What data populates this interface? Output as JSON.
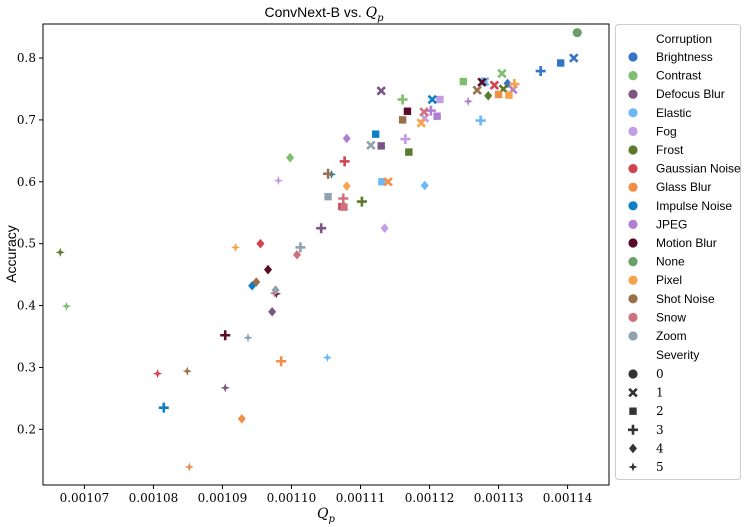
{
  "chart_data": {
    "type": "scatter",
    "title": "ConvNext-B vs. Q_p",
    "title_parts": {
      "text": "ConvNext-B vs. ",
      "math": "Q",
      "sub": "p"
    },
    "xlabel": "Q_p",
    "xlabel_parts": {
      "math": "Q",
      "sub": "p"
    },
    "ylabel": "Accuracy",
    "xlim": [
      0.001064,
      0.001146
    ],
    "ylim": [
      0.11,
      0.855
    ],
    "xticks": [
      {
        "value": 0.00107,
        "label": "0.00107"
      },
      {
        "value": 0.00108,
        "label": "0.00108"
      },
      {
        "value": 0.00109,
        "label": "0.00109"
      },
      {
        "value": 0.0011,
        "label": "0.00110"
      },
      {
        "value": 0.00111,
        "label": "0.00111"
      },
      {
        "value": 0.00112,
        "label": "0.00112"
      },
      {
        "value": 0.00113,
        "label": "0.00113"
      },
      {
        "value": 0.00114,
        "label": "0.00114"
      }
    ],
    "yticks": [
      {
        "value": 0.2,
        "label": "0.2"
      },
      {
        "value": 0.3,
        "label": "0.3"
      },
      {
        "value": 0.4,
        "label": "0.4"
      },
      {
        "value": 0.5,
        "label": "0.5"
      },
      {
        "value": 0.6,
        "label": "0.6"
      },
      {
        "value": 0.7,
        "label": "0.7"
      },
      {
        "value": 0.8,
        "label": "0.8"
      }
    ],
    "grid": false,
    "legend_position": "outside-right",
    "legend": {
      "hue_title": "Corruption",
      "corruptions": [
        {
          "name": "Brightness",
          "color": "#3575c7"
        },
        {
          "name": "Contrast",
          "color": "#7dbf6d"
        },
        {
          "name": "Defocus Blur",
          "color": "#7b5584"
        },
        {
          "name": "Elastic",
          "color": "#6cb8f5"
        },
        {
          "name": "Fog",
          "color": "#c39ce6"
        },
        {
          "name": "Frost",
          "color": "#5c7a2e"
        },
        {
          "name": "Gaussian Noise",
          "color": "#d2434f"
        },
        {
          "name": "Glass Blur",
          "color": "#f08f45"
        },
        {
          "name": "Impulse Noise",
          "color": "#0e7fc6"
        },
        {
          "name": "JPEG",
          "color": "#b07fd4"
        },
        {
          "name": "Motion Blur",
          "color": "#5c0a2a"
        },
        {
          "name": "None",
          "color": "#6a9e6a"
        },
        {
          "name": "Pixel",
          "color": "#f8a347"
        },
        {
          "name": "Shot Noise",
          "color": "#9a6f4b"
        },
        {
          "name": "Snow",
          "color": "#cf727f"
        },
        {
          "name": "Zoom",
          "color": "#8fa2ad"
        }
      ],
      "size_title": "Severity",
      "severities": [
        {
          "level": "0",
          "marker": "circle"
        },
        {
          "level": "1",
          "marker": "x"
        },
        {
          "level": "2",
          "marker": "square"
        },
        {
          "level": "3",
          "marker": "plus"
        },
        {
          "level": "4",
          "marker": "diamond"
        },
        {
          "level": "5",
          "marker": "star"
        }
      ]
    },
    "points": [
      {
        "c": "None",
        "s": 0,
        "x": 0.0011414,
        "y": 0.841
      },
      {
        "c": "Brightness",
        "s": 1,
        "x": 0.0011409,
        "y": 0.8
      },
      {
        "c": "Brightness",
        "s": 2,
        "x": 0.001139,
        "y": 0.792
      },
      {
        "c": "Brightness",
        "s": 3,
        "x": 0.0011361,
        "y": 0.779
      },
      {
        "c": "Brightness",
        "s": 4,
        "x": 0.0011313,
        "y": 0.759
      },
      {
        "c": "Brightness",
        "s": 5,
        "x": 0.0011278,
        "y": 0.762
      },
      {
        "c": "Contrast",
        "s": 1,
        "x": 0.0011305,
        "y": 0.775
      },
      {
        "c": "Contrast",
        "s": 2,
        "x": 0.0011249,
        "y": 0.762
      },
      {
        "c": "Contrast",
        "s": 3,
        "x": 0.0011161,
        "y": 0.733
      },
      {
        "c": "Contrast",
        "s": 4,
        "x": 0.0010998,
        "y": 0.639
      },
      {
        "c": "Contrast",
        "s": 5,
        "x": 0.0010674,
        "y": 0.399
      },
      {
        "c": "Defocus Blur",
        "s": 1,
        "x": 0.001113,
        "y": 0.747
      },
      {
        "c": "Defocus Blur",
        "s": 2,
        "x": 0.001113,
        "y": 0.658
      },
      {
        "c": "Defocus Blur",
        "s": 3,
        "x": 0.0011043,
        "y": 0.525
      },
      {
        "c": "Defocus Blur",
        "s": 4,
        "x": 0.0010972,
        "y": 0.39
      },
      {
        "c": "Defocus Blur",
        "s": 5,
        "x": 0.0010904,
        "y": 0.267
      },
      {
        "c": "Elastic",
        "s": 1,
        "x": 0.001128,
        "y": 0.762
      },
      {
        "c": "Elastic",
        "s": 2,
        "x": 0.0011131,
        "y": 0.6
      },
      {
        "c": "Elastic",
        "s": 3,
        "x": 0.0011274,
        "y": 0.699
      },
      {
        "c": "Elastic",
        "s": 4,
        "x": 0.0011193,
        "y": 0.594
      },
      {
        "c": "Elastic",
        "s": 5,
        "x": 0.0011052,
        "y": 0.316
      },
      {
        "c": "Fog",
        "s": 1,
        "x": 0.0011193,
        "y": 0.703
      },
      {
        "c": "Fog",
        "s": 2,
        "x": 0.0011215,
        "y": 0.733
      },
      {
        "c": "Fog",
        "s": 3,
        "x": 0.0011165,
        "y": 0.669
      },
      {
        "c": "Fog",
        "s": 4,
        "x": 0.0011135,
        "y": 0.525
      },
      {
        "c": "Fog",
        "s": 5,
        "x": 0.0010981,
        "y": 0.602
      },
      {
        "c": "Frost",
        "s": 1,
        "x": 0.0011307,
        "y": 0.75
      },
      {
        "c": "Frost",
        "s": 2,
        "x": 0.001117,
        "y": 0.648
      },
      {
        "c": "Frost",
        "s": 3,
        "x": 0.0011102,
        "y": 0.568
      },
      {
        "c": "Frost",
        "s": 4,
        "x": 0.0011285,
        "y": 0.739
      },
      {
        "c": "Frost",
        "s": 5,
        "x": 0.0010665,
        "y": 0.486
      },
      {
        "c": "Gaussian Noise",
        "s": 1,
        "x": 0.0011294,
        "y": 0.756
      },
      {
        "c": "Gaussian Noise",
        "s": 2,
        "x": 0.0011073,
        "y": 0.56
      },
      {
        "c": "Gaussian Noise",
        "s": 3,
        "x": 0.0011077,
        "y": 0.633
      },
      {
        "c": "Gaussian Noise",
        "s": 4,
        "x": 0.0010955,
        "y": 0.5
      },
      {
        "c": "Gaussian Noise",
        "s": 5,
        "x": 0.0010806,
        "y": 0.29
      },
      {
        "c": "Glass Blur",
        "s": 1,
        "x": 0.001114,
        "y": 0.6
      },
      {
        "c": "Glass Blur",
        "s": 2,
        "x": 0.00113,
        "y": 0.741
      },
      {
        "c": "Glass Blur",
        "s": 3,
        "x": 0.0010985,
        "y": 0.31
      },
      {
        "c": "Glass Blur",
        "s": 4,
        "x": 0.0010928,
        "y": 0.217
      },
      {
        "c": "Glass Blur",
        "s": 5,
        "x": 0.0010852,
        "y": 0.139
      },
      {
        "c": "Impulse Noise",
        "s": 1,
        "x": 0.0011204,
        "y": 0.733
      },
      {
        "c": "Impulse Noise",
        "s": 2,
        "x": 0.0011122,
        "y": 0.677
      },
      {
        "c": "Impulse Noise",
        "s": 3,
        "x": 0.0010815,
        "y": 0.235
      },
      {
        "c": "Impulse Noise",
        "s": 4,
        "x": 0.0010943,
        "y": 0.432
      },
      {
        "c": "Impulse Noise",
        "s": 5,
        "x": 0.0011058,
        "y": 0.612
      },
      {
        "c": "JPEG",
        "s": 1,
        "x": 0.0011321,
        "y": 0.749
      },
      {
        "c": "JPEG",
        "s": 2,
        "x": 0.0011211,
        "y": 0.706
      },
      {
        "c": "JPEG",
        "s": 3,
        "x": 0.0011202,
        "y": 0.715
      },
      {
        "c": "JPEG",
        "s": 4,
        "x": 0.001108,
        "y": 0.67
      },
      {
        "c": "JPEG",
        "s": 5,
        "x": 0.0011256,
        "y": 0.73
      },
      {
        "c": "Motion Blur",
        "s": 1,
        "x": 0.0011276,
        "y": 0.761
      },
      {
        "c": "Motion Blur",
        "s": 2,
        "x": 0.0011168,
        "y": 0.714
      },
      {
        "c": "Motion Blur",
        "s": 3,
        "x": 0.0010904,
        "y": 0.352
      },
      {
        "c": "Motion Blur",
        "s": 4,
        "x": 0.0010966,
        "y": 0.458
      },
      {
        "c": "Motion Blur",
        "s": 5,
        "x": 0.0010978,
        "y": 0.419
      },
      {
        "c": "Pixel",
        "s": 1,
        "x": 0.0011188,
        "y": 0.695
      },
      {
        "c": "Pixel",
        "s": 2,
        "x": 0.0011315,
        "y": 0.74
      },
      {
        "c": "Pixel",
        "s": 3,
        "x": 0.0011323,
        "y": 0.758
      },
      {
        "c": "Pixel",
        "s": 4,
        "x": 0.001108,
        "y": 0.593
      },
      {
        "c": "Pixel",
        "s": 5,
        "x": 0.0010919,
        "y": 0.494
      },
      {
        "c": "Shot Noise",
        "s": 1,
        "x": 0.0011269,
        "y": 0.748
      },
      {
        "c": "Shot Noise",
        "s": 2,
        "x": 0.0011161,
        "y": 0.7
      },
      {
        "c": "Shot Noise",
        "s": 3,
        "x": 0.0011053,
        "y": 0.613
      },
      {
        "c": "Shot Noise",
        "s": 4,
        "x": 0.0010949,
        "y": 0.438
      },
      {
        "c": "Shot Noise",
        "s": 5,
        "x": 0.0010849,
        "y": 0.294
      },
      {
        "c": "Snow",
        "s": 1,
        "x": 0.0011192,
        "y": 0.713
      },
      {
        "c": "Snow",
        "s": 2,
        "x": 0.0011076,
        "y": 0.559
      },
      {
        "c": "Snow",
        "s": 3,
        "x": 0.0011075,
        "y": 0.573
      },
      {
        "c": "Snow",
        "s": 4,
        "x": 0.0011008,
        "y": 0.482
      },
      {
        "c": "Snow",
        "s": 5,
        "x": 0.0010975,
        "y": 0.42
      },
      {
        "c": "Zoom",
        "s": 1,
        "x": 0.0011115,
        "y": 0.659
      },
      {
        "c": "Zoom",
        "s": 2,
        "x": 0.0011053,
        "y": 0.576
      },
      {
        "c": "Zoom",
        "s": 3,
        "x": 0.0011013,
        "y": 0.494
      },
      {
        "c": "Zoom",
        "s": 4,
        "x": 0.0010977,
        "y": 0.425
      },
      {
        "c": "Zoom",
        "s": 5,
        "x": 0.0010937,
        "y": 0.348
      }
    ]
  }
}
